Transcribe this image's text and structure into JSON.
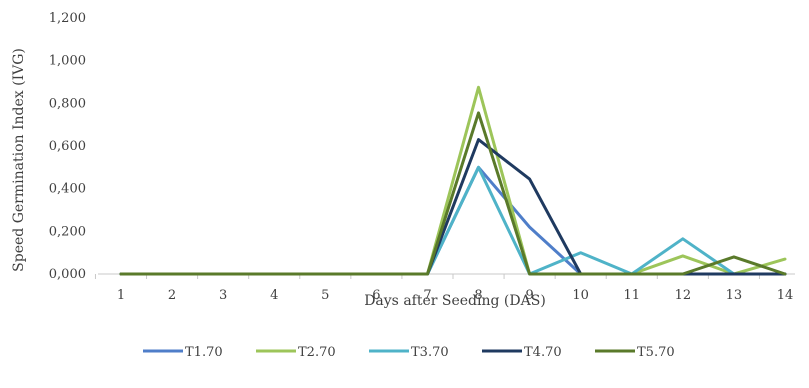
{
  "chart_data": {
    "type": "line",
    "xlabel": "Days after Seeding (DAS)",
    "ylabel": "Speed Germination Index (IVG)",
    "x": [
      "1",
      "2",
      "3",
      "4",
      "5",
      "6",
      "7",
      "8",
      "9",
      "10",
      "11",
      "12",
      "13",
      "14"
    ],
    "y_ticks": [
      "0,000",
      "0,200",
      "0,400",
      "0,600",
      "0,800",
      "1,000",
      "1,200"
    ],
    "ylim": [
      0,
      1.2
    ],
    "grid": false,
    "legend_position": "bottom",
    "series": [
      {
        "name": "T1.70",
        "color": "#4f7ec9",
        "values": [
          0,
          0,
          0,
          0,
          0,
          0,
          0,
          0.5,
          0.22,
          0,
          0,
          0,
          0,
          0
        ]
      },
      {
        "name": "T2.70",
        "color": "#9dc55a",
        "values": [
          0,
          0,
          0,
          0,
          0,
          0,
          0,
          0.875,
          0,
          0,
          0,
          0.085,
          0,
          0.07
        ]
      },
      {
        "name": "T3.70",
        "color": "#4fb3c8",
        "values": [
          0,
          0,
          0,
          0,
          0,
          0,
          0,
          0.5,
          0,
          0.1,
          0,
          0.165,
          0,
          0
        ]
      },
      {
        "name": "T4.70",
        "color": "#1f3a60",
        "values": [
          0,
          0,
          0,
          0,
          0,
          0,
          0,
          0.63,
          0.445,
          0,
          0,
          0,
          0,
          0
        ]
      },
      {
        "name": "T5.70",
        "color": "#5a7a2a",
        "values": [
          0,
          0,
          0,
          0,
          0,
          0,
          0,
          0.755,
          0,
          0,
          0,
          0,
          0.08,
          0
        ]
      }
    ]
  }
}
